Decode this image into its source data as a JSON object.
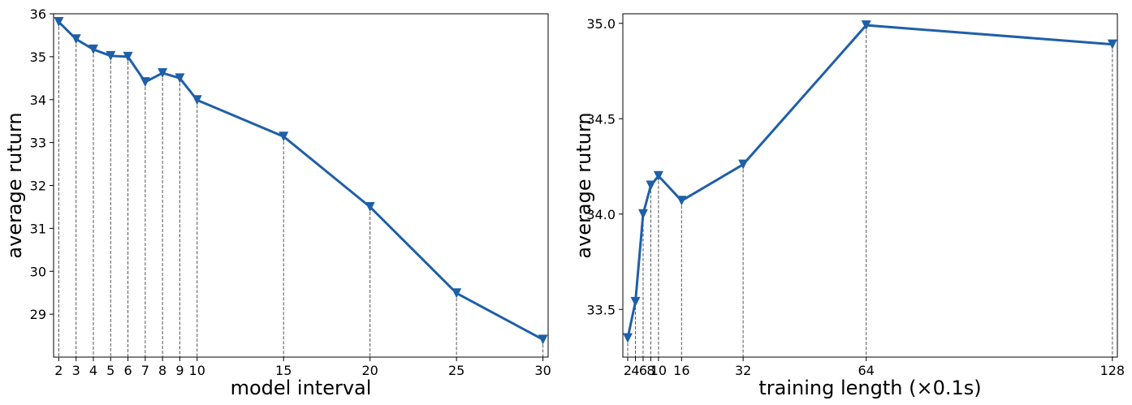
{
  "chart_data": [
    {
      "type": "line",
      "xlabel": "model interval",
      "ylabel": "average ruturn",
      "color": "#1f5fa8",
      "x": [
        2,
        3,
        4,
        5,
        6,
        7,
        8,
        9,
        10,
        15,
        20,
        25,
        30
      ],
      "values": [
        35.81,
        35.41,
        35.17,
        35.02,
        35.0,
        34.41,
        34.62,
        34.5,
        33.99,
        33.14,
        31.5,
        29.49,
        28.41
      ],
      "xlim": [
        1.7,
        30.3
      ],
      "xticks": [
        2,
        3,
        4,
        5,
        6,
        7,
        8,
        9,
        10,
        15,
        20,
        25,
        30
      ],
      "ylim": [
        28,
        36
      ],
      "yticks": [
        29,
        30,
        31,
        32,
        33,
        34,
        35,
        36
      ]
    },
    {
      "type": "line",
      "xlabel": "training length (×0.1s)",
      "ylabel": "average ruturn",
      "color": "#1f5fa8",
      "x": [
        2,
        4,
        6,
        8,
        10,
        16,
        32,
        64,
        128
      ],
      "values": [
        33.35,
        33.54,
        34.0,
        34.15,
        34.2,
        34.07,
        34.26,
        34.99,
        34.89
      ],
      "xlim": [
        0.73,
        129.3
      ],
      "xticks": [
        2,
        4,
        6,
        8,
        10,
        16,
        32,
        64,
        128
      ],
      "ylim": [
        33.25,
        35.05
      ],
      "yticks": [
        33.5,
        34.0,
        34.5,
        35.0
      ]
    }
  ]
}
